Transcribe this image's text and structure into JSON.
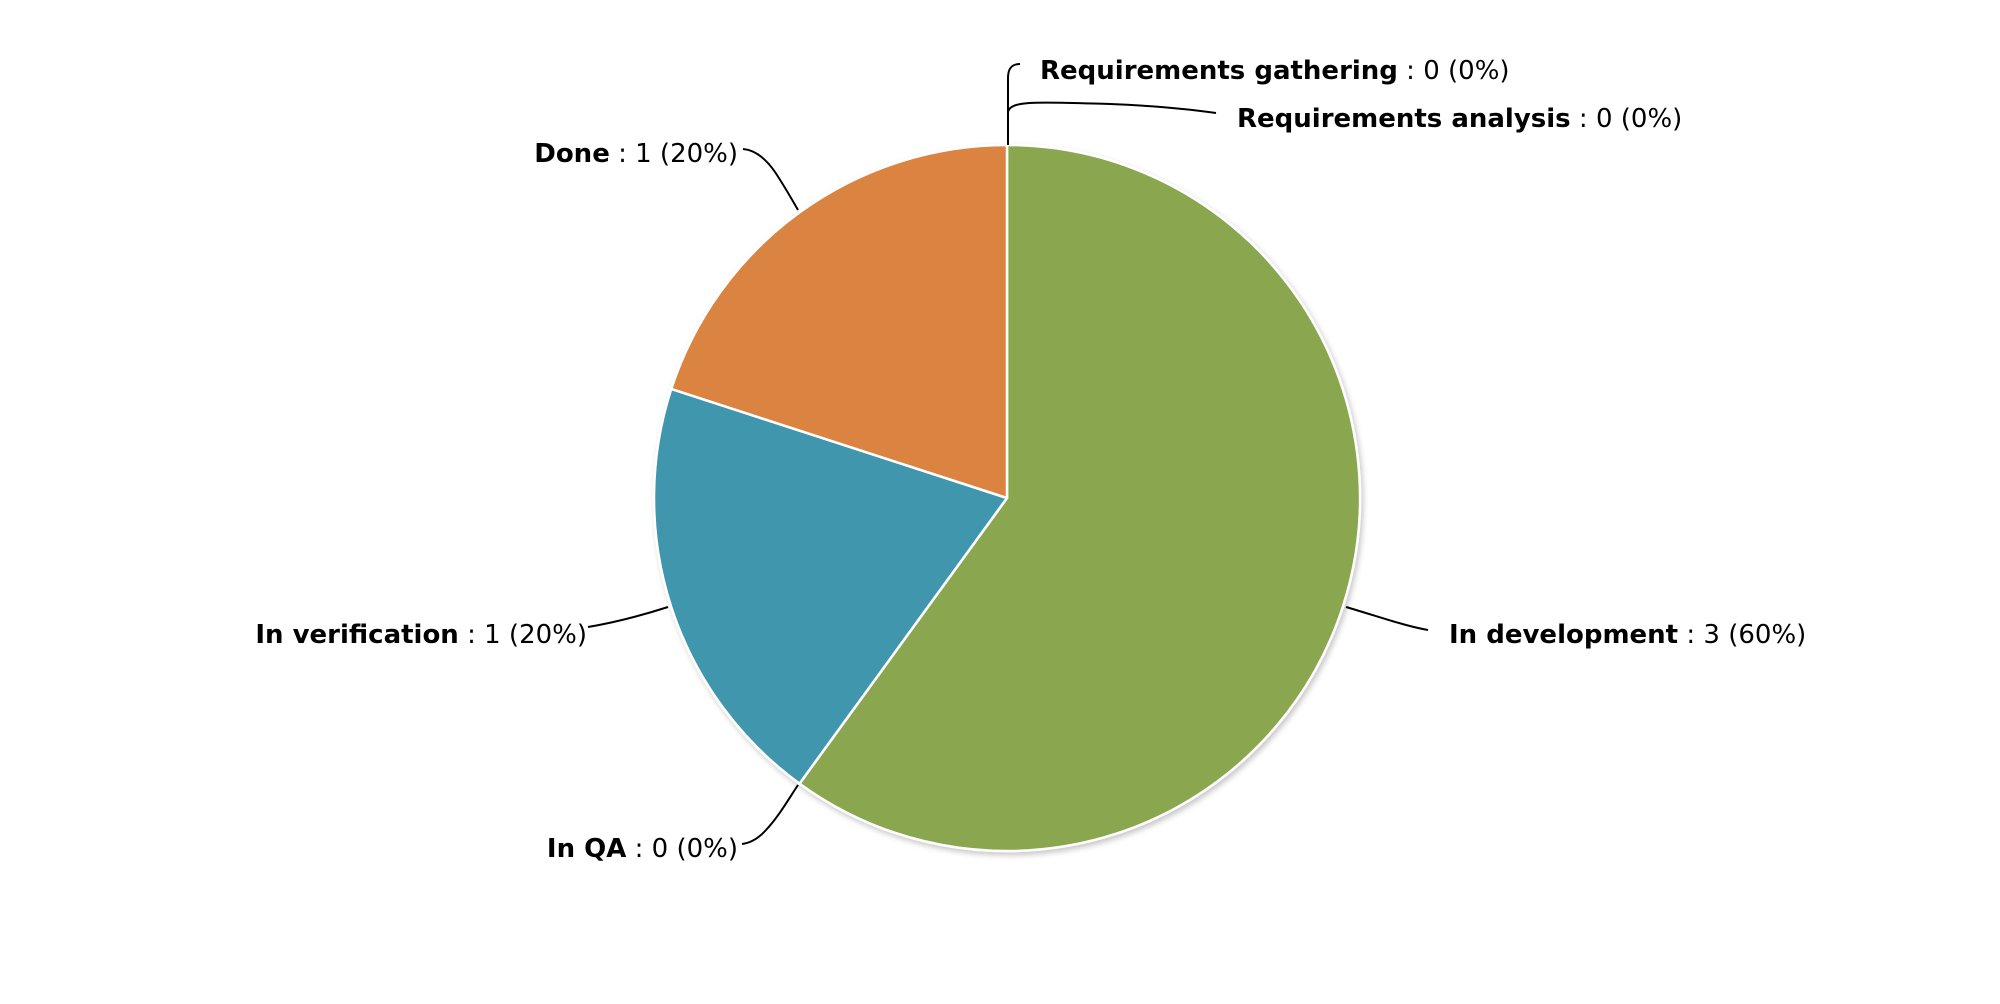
{
  "chart_data": {
    "type": "pie",
    "title": "",
    "categories": [
      "Requirements gathering",
      "Requirements analysis",
      "In development",
      "In QA",
      "In verification",
      "Done"
    ],
    "values": [
      0,
      0,
      3,
      0,
      1,
      1
    ],
    "percent_labels": [
      "0%",
      "0%",
      "60%",
      "0%",
      "20%",
      "20%"
    ],
    "colors": [
      "#5b7fb5",
      "#b5485a",
      "#8aa64f",
      "#7a5fa0",
      "#4096ad",
      "#db8340"
    ],
    "start_angle_deg": 0,
    "direction": "clockwise",
    "legend": "none",
    "label_format": "name : value (percent)",
    "label_separator": " : "
  }
}
